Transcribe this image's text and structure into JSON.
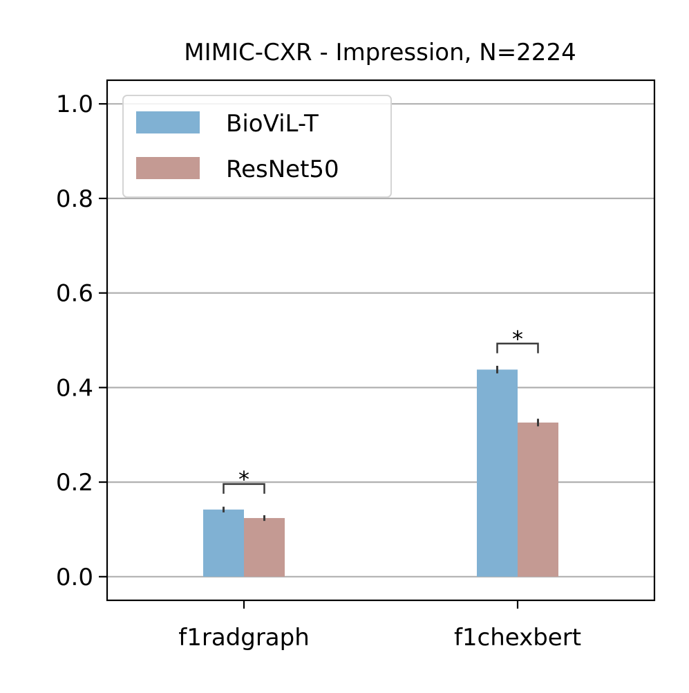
{
  "chart_data": {
    "type": "bar",
    "title": "MIMIC-CXR - Impression, N=2224",
    "xlabel": "",
    "ylabel": "",
    "categories": [
      "f1radgraph",
      "f1chexbert"
    ],
    "series": [
      {
        "name": "BioViL-T",
        "color": "#80b1d3",
        "values": [
          0.142,
          0.438
        ],
        "err": [
          0.006,
          0.008
        ]
      },
      {
        "name": "ResNet50",
        "color": "#c49a93",
        "values": [
          0.124,
          0.326
        ],
        "err": [
          0.006,
          0.008
        ]
      }
    ],
    "ylim": [
      -0.05,
      1.05
    ],
    "yticks": [
      0.0,
      0.2,
      0.4,
      0.6,
      0.8,
      1.0
    ],
    "ytick_labels": [
      "0.0",
      "0.2",
      "0.4",
      "0.6",
      "0.8",
      "1.0"
    ],
    "grid": true,
    "legend_position": "top-left",
    "annotations": [
      {
        "text": "*",
        "category": "f1radgraph",
        "y": 0.196
      },
      {
        "text": "*",
        "category": "f1chexbert",
        "y": 0.493
      }
    ]
  }
}
